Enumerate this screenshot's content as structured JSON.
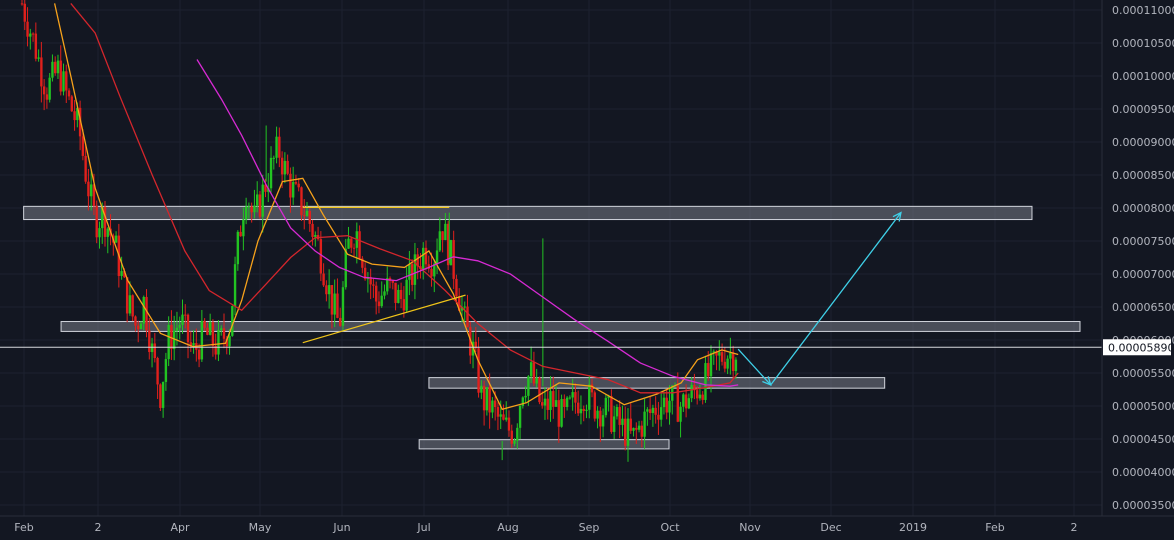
{
  "chart_data": {
    "type": "candlestick",
    "theme": {
      "background": "#131722",
      "grid": "#1f2433",
      "axis_text": "#b2b5be",
      "up": "#22c322",
      "down": "#e0201c"
    },
    "x_ticks": [
      "Feb",
      "2",
      "Apr",
      "May",
      "Jun",
      "Jul",
      "Aug",
      "Sep",
      "Oct",
      "Nov",
      "Dec",
      "2019",
      "Feb",
      "2"
    ],
    "y_ticks": [
      "0.00011000",
      "0.00010500",
      "0.00010000",
      "0.00009500",
      "0.00009000",
      "0.00008500",
      "0.00008000",
      "0.00007500",
      "0.00007000",
      "0.00006500",
      "0.00006000",
      "0.00005500",
      "0.00005000",
      "0.00004500",
      "0.00004000",
      "0.00003500"
    ],
    "y_range": [
      3.1e-05,
      0.000111
    ],
    "last_price": "0.00005890",
    "last_price_value": 5.89e-05,
    "last_price_color": "#ffffff",
    "zones": [
      {
        "name": "resistance-zone",
        "t0": 2,
        "t1": 1241,
        "top": 8.025e-05,
        "bottom": 7.825e-05
      },
      {
        "name": "mid-zone",
        "t0": 48,
        "t1": 1300,
        "top": 6.28e-05,
        "bottom": 6.13e-05
      },
      {
        "name": "support-zone",
        "t0": 500,
        "t1": 1060,
        "top": 5.43e-05,
        "bottom": 5.27e-05
      },
      {
        "name": "bottom-zone",
        "t0": 488,
        "t1": 795,
        "top": 4.49e-05,
        "bottom": 4.35e-05
      }
    ],
    "trend_lines": [
      {
        "name": "top-line",
        "color": "#f0c419",
        "t0": 345,
        "v0": 8.01e-05,
        "t1": 525,
        "v1": 8.01e-05
      },
      {
        "name": "rising-trendline",
        "color": "#f0c419",
        "t0": 345,
        "v0": 5.96e-05,
        "t1": 545,
        "v1": 6.68e-05
      }
    ],
    "projection": {
      "color": "#3fd0e8",
      "points": [
        {
          "t": 880,
          "v": 5.86e-05
        },
        {
          "t": 920,
          "v": 5.32e-05
        },
        {
          "t": 1080,
          "v": 7.93e-05
        }
      ]
    },
    "moving_averages": [
      {
        "name": "ma-orange",
        "color": "#f7a21b",
        "points": [
          [
            40,
            0.000111
          ],
          [
            60,
            0.0001
          ],
          [
            90,
            8.3e-05
          ],
          [
            130,
            6.9e-05
          ],
          [
            170,
            6.1e-05
          ],
          [
            210,
            5.9e-05
          ],
          [
            250,
            5.95e-05
          ],
          [
            270,
            6.6e-05
          ],
          [
            290,
            7.5e-05
          ],
          [
            320,
            8.4e-05
          ],
          [
            345,
            8.45e-05
          ],
          [
            370,
            7.9e-05
          ],
          [
            400,
            7.3e-05
          ],
          [
            430,
            7.15e-05
          ],
          [
            470,
            7.1e-05
          ],
          [
            500,
            7.35e-05
          ],
          [
            530,
            6.7e-05
          ],
          [
            560,
            5.7e-05
          ],
          [
            590,
            4.95e-05
          ],
          [
            620,
            5.05e-05
          ],
          [
            660,
            5.35e-05
          ],
          [
            700,
            5.3e-05
          ],
          [
            740,
            5.02e-05
          ],
          [
            780,
            5.18e-05
          ],
          [
            810,
            5.35e-05
          ],
          [
            830,
            5.7e-05
          ],
          [
            860,
            5.85e-05
          ],
          [
            880,
            5.78e-05
          ]
        ]
      },
      {
        "name": "ma-red",
        "color": "#d3262c",
        "points": [
          [
            60,
            0.000111
          ],
          [
            90,
            0.0001065
          ],
          [
            120,
            9.7e-05
          ],
          [
            160,
            8.5e-05
          ],
          [
            200,
            7.35e-05
          ],
          [
            230,
            6.75e-05
          ],
          [
            270,
            6.45e-05
          ],
          [
            300,
            6.85e-05
          ],
          [
            330,
            7.25e-05
          ],
          [
            360,
            7.55e-05
          ],
          [
            400,
            7.58e-05
          ],
          [
            440,
            7.38e-05
          ],
          [
            480,
            7.2e-05
          ],
          [
            520,
            6.75e-05
          ],
          [
            560,
            6.25e-05
          ],
          [
            600,
            5.85e-05
          ],
          [
            640,
            5.6e-05
          ],
          [
            680,
            5.5e-05
          ],
          [
            720,
            5.4e-05
          ],
          [
            760,
            5.2e-05
          ],
          [
            800,
            5.2e-05
          ],
          [
            840,
            5.28e-05
          ],
          [
            870,
            5.35e-05
          ],
          [
            880,
            5.5e-05
          ]
        ]
      },
      {
        "name": "ma-magenta",
        "color": "#d62ad3",
        "points": [
          [
            215,
            0.0001025
          ],
          [
            245,
            9.65e-05
          ],
          [
            270,
            9.1e-05
          ],
          [
            300,
            8.35e-05
          ],
          [
            330,
            7.7e-05
          ],
          [
            360,
            7.35e-05
          ],
          [
            390,
            7.1e-05
          ],
          [
            420,
            6.95e-05
          ],
          [
            460,
            6.9e-05
          ],
          [
            500,
            7.1e-05
          ],
          [
            530,
            7.26e-05
          ],
          [
            560,
            7.2e-05
          ],
          [
            600,
            7e-05
          ],
          [
            640,
            6.65e-05
          ],
          [
            680,
            6.3e-05
          ],
          [
            720,
            5.98e-05
          ],
          [
            760,
            5.65e-05
          ],
          [
            800,
            5.45e-05
          ],
          [
            840,
            5.32e-05
          ],
          [
            870,
            5.3e-05
          ],
          [
            880,
            5.32e-05
          ]
        ]
      }
    ],
    "price_path": [
      [
        0,
        0.000111
      ],
      [
        15,
        0.000105
      ],
      [
        30,
        9.8e-05
      ],
      [
        45,
        0.000101
      ],
      [
        55,
        9.7e-05
      ],
      [
        70,
        9.2e-05
      ],
      [
        80,
        8.4e-05
      ],
      [
        90,
        7.8e-05
      ],
      [
        100,
        7.9e-05
      ],
      [
        115,
        7.4e-05
      ],
      [
        125,
        6.8e-05
      ],
      [
        140,
        6.2e-05
      ],
      [
        150,
        6.6e-05
      ],
      [
        160,
        5.8e-05
      ],
      [
        170,
        5.2e-05
      ],
      [
        180,
        6e-05
      ],
      [
        195,
        6.3e-05
      ],
      [
        210,
        5.8e-05
      ],
      [
        225,
        6.1e-05
      ],
      [
        240,
        5.9e-05
      ],
      [
        255,
        6.2e-05
      ],
      [
        265,
        7.4e-05
      ],
      [
        275,
        8.3e-05
      ],
      [
        285,
        7.8e-05
      ],
      [
        300,
        8.4e-05
      ],
      [
        315,
        8.9e-05
      ],
      [
        325,
        8.5e-05
      ],
      [
        335,
        8.2e-05
      ],
      [
        350,
        7.9e-05
      ],
      [
        365,
        7.4e-05
      ],
      [
        380,
        6.6e-05
      ],
      [
        390,
        6.2e-05
      ],
      [
        400,
        7.4e-05
      ],
      [
        410,
        7.7e-05
      ],
      [
        420,
        7.2e-05
      ],
      [
        435,
        6.6e-05
      ],
      [
        450,
        6.8e-05
      ],
      [
        465,
        6.6e-05
      ],
      [
        480,
        7e-05
      ],
      [
        495,
        7.4e-05
      ],
      [
        505,
        7.2e-05
      ],
      [
        515,
        7.8e-05
      ],
      [
        530,
        7.1e-05
      ],
      [
        545,
        6.2e-05
      ],
      [
        555,
        5.8e-05
      ],
      [
        565,
        5.1e-05
      ],
      [
        575,
        5e-05
      ],
      [
        590,
        4.7e-05
      ],
      [
        605,
        4.6e-05
      ],
      [
        615,
        5.3e-05
      ],
      [
        625,
        5.5e-05
      ],
      [
        640,
        4.9e-05
      ],
      [
        650,
        5.1e-05
      ],
      [
        665,
        4.8e-05
      ],
      [
        675,
        5e-05
      ],
      [
        690,
        5.2e-05
      ],
      [
        705,
        5e-05
      ],
      [
        720,
        4.9e-05
      ],
      [
        735,
        4.7e-05
      ],
      [
        750,
        4.5e-05
      ],
      [
        765,
        4.8e-05
      ],
      [
        780,
        5e-05
      ],
      [
        795,
        5.1e-05
      ],
      [
        810,
        5e-05
      ],
      [
        825,
        5.2e-05
      ],
      [
        840,
        5.4e-05
      ],
      [
        855,
        5.7e-05
      ],
      [
        865,
        5.8e-05
      ],
      [
        875,
        5.8e-05
      ],
      [
        880,
        5.89e-05
      ]
    ]
  }
}
